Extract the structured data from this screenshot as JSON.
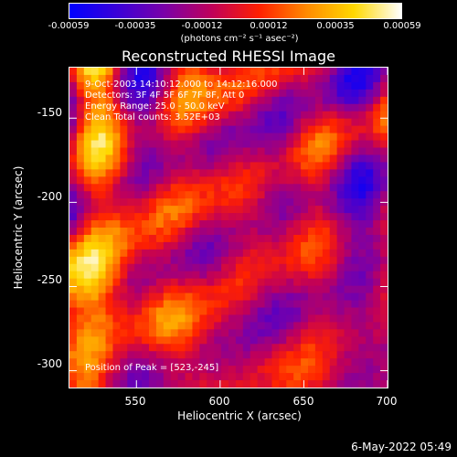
{
  "colorbar": {
    "ticks": [
      "-0.00059",
      "-0.00035",
      "-0.00012",
      "0.00012",
      "0.00035",
      "0.00059"
    ],
    "units": "(photons cm⁻² s⁻¹ asec⁻²)",
    "gradient": [
      "#0000ff",
      "#3a00d8",
      "#7a00a8",
      "#c0005a",
      "#ff2000",
      "#ff8a00",
      "#ffd800",
      "#ffffff"
    ]
  },
  "chart_data": {
    "type": "heatmap",
    "title": "Reconstructed RHESSI Image",
    "xlabel": "Heliocentric X (arcsec)",
    "ylabel": "Heliocentric Y (arcsec)",
    "xlim": [
      510,
      700
    ],
    "ylim": [
      -310,
      -120
    ],
    "xticks": [
      550,
      600,
      650,
      700
    ],
    "yticks": [
      -150,
      -200,
      -250,
      -300
    ],
    "vmin": -0.00059,
    "vmax": 0.00059,
    "peak": {
      "x": 523,
      "y": -245
    },
    "annotations": [
      "9-Oct-2003 14:10:12.000 to 14:12:16.000",
      "Detectors: 3F 4F 5F 6F 7F 8F, Att 0",
      "Energy Range: 25.0 - 50.0 keV",
      "Clean     Total counts: 3.52E+03"
    ],
    "peak_label": "Position of Peak = [523,-245]"
  },
  "timestamp": "6-May-2022 05:49"
}
